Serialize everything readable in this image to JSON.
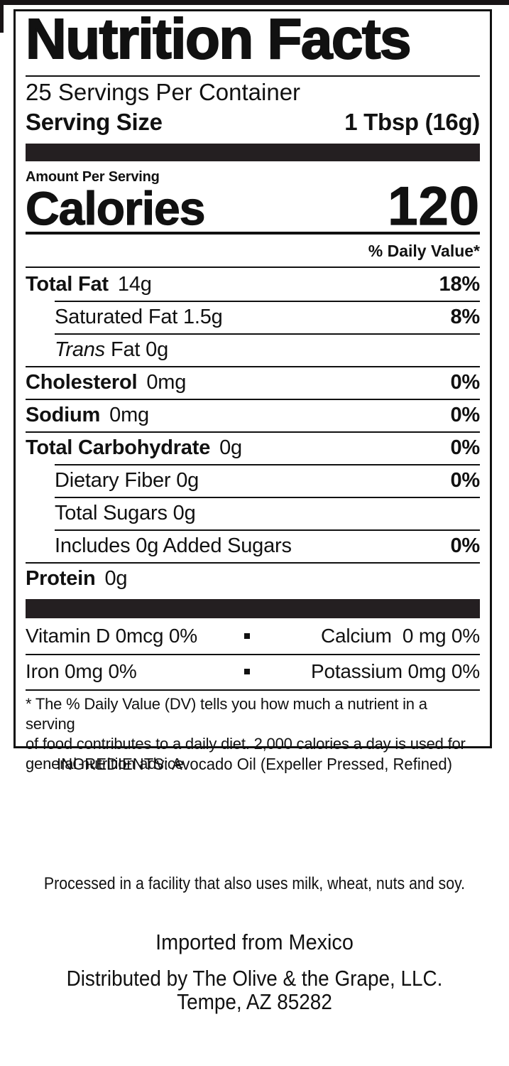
{
  "nutrition_label": {
    "title": "Nutrition Facts",
    "servings_per_container": "25 Servings Per Container",
    "serving_size": {
      "label": "Serving Size",
      "value": "1 Tbsp (16g)"
    },
    "amount_per_serving": "Amount Per Serving",
    "calories": {
      "label": "Calories",
      "value": "120"
    },
    "daily_value_header": "% Daily Value*",
    "nutrients": [
      {
        "label_bold": "Total Fat",
        "amount": "14g",
        "dv": "18%",
        "sep": "none",
        "indent": false
      },
      {
        "label": "Saturated Fat 1.5g",
        "dv": "8%",
        "sep": "indent",
        "indent": true
      },
      {
        "label_italic": "Trans",
        "label": "Fat 0g",
        "dv": "",
        "sep": "indent",
        "indent": true
      },
      {
        "label_bold": "Cholesterol",
        "amount": "0mg",
        "dv": "0%",
        "sep": "full",
        "indent": false
      },
      {
        "label_bold": "Sodium",
        "amount": "0mg",
        "dv": "0%",
        "sep": "full",
        "indent": false
      },
      {
        "label_bold": "Total Carbohydrate",
        "amount": "0g",
        "dv": "0%",
        "sep": "full",
        "indent": false
      },
      {
        "label": "Dietary Fiber 0g",
        "dv": "0%",
        "sep": "indent",
        "indent": true
      },
      {
        "label": "Total Sugars 0g",
        "dv": "",
        "sep": "indent",
        "indent": true
      },
      {
        "label": "Includes 0g Added Sugars",
        "dv": "0%",
        "sep": "indent",
        "indent": true
      },
      {
        "label_bold": "Protein",
        "amount": "0g",
        "dv": "",
        "sep": "full",
        "indent": false
      }
    ],
    "micronutrients": [
      {
        "left": "Vitamin D 0mcg 0%",
        "right": "Calcium  0 mg 0%",
        "sep": "none"
      },
      {
        "left": "Iron 0mg 0%",
        "right": "Potassium 0mg 0%",
        "sep": "full"
      }
    ],
    "footnote_lines": [
      "* The % Daily Value (DV) tells you how much a nutrient in a serving",
      "of food contributes to a daily diet. 2,000 calories a day is used for",
      "general nutrition advice"
    ]
  },
  "additional_info": {
    "ingredients": "INGREDIENTS: Avocado Oil (Expeller Pressed, Refined)",
    "allergen_statement": "Processed in a facility that also uses milk, wheat, nuts and soy.",
    "origin": "Imported from Mexico",
    "distributor_line1": "Distributed by The Olive & the Grape, LLC.",
    "distributor_line2": "Tempe, AZ 85282"
  },
  "colors": {
    "text": "#111111",
    "bar": "#241f21",
    "background": "#ffffff"
  }
}
